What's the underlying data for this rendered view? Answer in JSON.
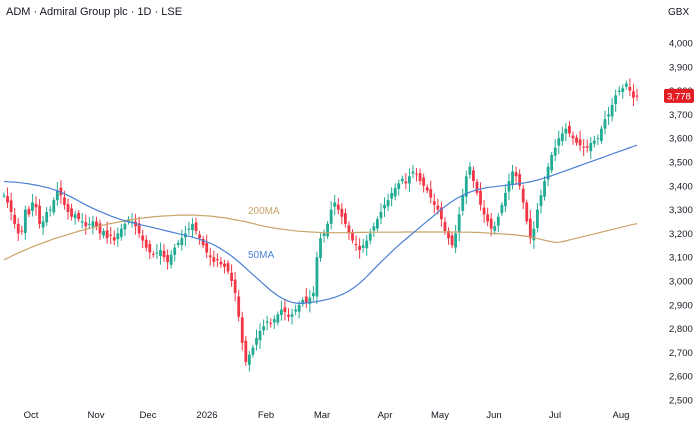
{
  "header": {
    "title": "ADM · Admiral Group plc · 1D · LSE",
    "currency": "GBX"
  },
  "colors": {
    "up": "#22ab94",
    "down": "#f23645",
    "ma50": "#4a7fd4",
    "ma200": "#c9a46a",
    "price_tag": "#e31c23"
  },
  "chart_data": {
    "type": "candlestick",
    "x_tick_labels": [
      "Oct",
      "Nov",
      "Dec",
      "2026",
      "Feb",
      "Mar",
      "Apr",
      "May",
      "Jun",
      "Jul",
      "Aug"
    ],
    "y_tick_labels": [
      "4,000",
      "3,900",
      "3,800",
      "3,700",
      "3,600",
      "3,500",
      "3,400",
      "3,300",
      "3,200",
      "3,100",
      "3,000",
      "2,900",
      "2,800",
      "2,700",
      "2,600",
      "2,500"
    ],
    "ylim": [
      2500,
      4050
    ],
    "last_price": "3,778",
    "last_price_value": 3778,
    "grid": false,
    "close_series": [
      3360,
      3330,
      3290,
      3240,
      3200,
      3210,
      3300,
      3280,
      3330,
      3310,
      3240,
      3250,
      3290,
      3300,
      3340,
      3380,
      3360,
      3320,
      3290,
      3270,
      3280,
      3260,
      3250,
      3230,
      3240,
      3250,
      3230,
      3200,
      3210,
      3180,
      3190,
      3170,
      3200,
      3220,
      3240,
      3260,
      3250,
      3230,
      3200,
      3170,
      3140,
      3120,
      3110,
      3120,
      3130,
      3100,
      3080,
      3110,
      3140,
      3160,
      3180,
      3200,
      3220,
      3240,
      3210,
      3180,
      3150,
      3120,
      3100,
      3080,
      3090,
      3070,
      3060,
      3040,
      3000,
      2950,
      2850,
      2740,
      2660,
      2690,
      2720,
      2760,
      2790,
      2810,
      2830,
      2820,
      2840,
      2860,
      2880,
      2870,
      2850,
      2860,
      2880,
      2900,
      2920,
      2910,
      2930,
      2950,
      3100,
      3180,
      3200,
      3240,
      3300,
      3330,
      3300,
      3270,
      3240,
      3200,
      3170,
      3150,
      3130,
      3150,
      3170,
      3200,
      3230,
      3260,
      3290,
      3320,
      3340,
      3370,
      3390,
      3410,
      3430,
      3410,
      3440,
      3460,
      3450,
      3420,
      3400,
      3380,
      3350,
      3320,
      3300,
      3260,
      3210,
      3180,
      3150,
      3200,
      3280,
      3360,
      3440,
      3480,
      3420,
      3370,
      3320,
      3280,
      3250,
      3220,
      3230,
      3270,
      3320,
      3370,
      3420,
      3460,
      3440,
      3400,
      3330,
      3250,
      3180,
      3220,
      3300,
      3360,
      3420,
      3480,
      3530,
      3560,
      3600,
      3620,
      3640,
      3620,
      3600,
      3580,
      3570,
      3560,
      3560,
      3580,
      3590,
      3600,
      3640,
      3680,
      3700,
      3740,
      3780,
      3800,
      3810,
      3830,
      3800,
      3770,
      3778
    ],
    "annotations": [
      {
        "name": "200MA",
        "series": [
          3089,
          3097,
          3105,
          3113,
          3120,
          3127,
          3134,
          3141,
          3148,
          3154,
          3160,
          3166,
          3172,
          3178,
          3183,
          3188,
          3193,
          3198,
          3203,
          3208,
          3212,
          3217,
          3221,
          3225,
          3229,
          3233,
          3236,
          3240,
          3243,
          3246,
          3249,
          3252,
          3255,
          3258,
          3260,
          3263,
          3265,
          3267,
          3269,
          3271,
          3272,
          3273,
          3274,
          3275,
          3276,
          3277,
          3277,
          3277,
          3277,
          3277,
          3276,
          3275,
          3274,
          3273,
          3271,
          3269,
          3267,
          3265,
          3262,
          3259,
          3256,
          3253,
          3250,
          3246,
          3242,
          3238,
          3234,
          3230,
          3227,
          3224,
          3221,
          3219,
          3217,
          3215,
          3213,
          3211,
          3209,
          3208,
          3207,
          3206,
          3205,
          3204,
          3203,
          3203,
          3203,
          3203,
          3203,
          3203,
          3203,
          3203,
          3203,
          3204,
          3204,
          3204,
          3205,
          3205,
          3205,
          3205,
          3205,
          3205,
          3205,
          3205,
          3205,
          3206,
          3206,
          3206,
          3206,
          3206,
          3206,
          3206,
          3206,
          3206,
          3206,
          3206,
          3206,
          3206,
          3206,
          3206,
          3205,
          3205,
          3205,
          3204,
          3204,
          3203,
          3202,
          3201,
          3200,
          3199,
          3198,
          3197,
          3196,
          3195,
          3193,
          3191,
          3189,
          3187,
          3184,
          3180,
          3176,
          3172,
          3168,
          3165,
          3162,
          3163,
          3166,
          3170,
          3174,
          3178,
          3182,
          3186,
          3190,
          3194,
          3198,
          3202,
          3206,
          3210,
          3214,
          3218,
          3222,
          3226,
          3230,
          3234,
          3238,
          3241
        ]
      },
      {
        "name": "50MA",
        "series": [
          3418,
          3417,
          3416,
          3415,
          3413,
          3411,
          3409,
          3406,
          3403,
          3400,
          3396,
          3392,
          3387,
          3381,
          3375,
          3368,
          3360,
          3352,
          3343,
          3334,
          3325,
          3316,
          3308,
          3300,
          3293,
          3286,
          3279,
          3272,
          3266,
          3260,
          3255,
          3250,
          3246,
          3242,
          3238,
          3234,
          3230,
          3226,
          3222,
          3218,
          3214,
          3210,
          3206,
          3202,
          3198,
          3194,
          3190,
          3186,
          3181,
          3176,
          3170,
          3164,
          3157,
          3149,
          3140,
          3130,
          3119,
          3107,
          3094,
          3080,
          3065,
          3050,
          3035,
          3020,
          3005,
          2990,
          2975,
          2960,
          2948,
          2936,
          2926,
          2918,
          2912,
          2908,
          2906,
          2906,
          2908,
          2910,
          2912,
          2915,
          2918,
          2922,
          2926,
          2931,
          2937,
          2944,
          2952,
          2962,
          2973,
          2986,
          3001,
          3017,
          3034,
          3051,
          3068,
          3085,
          3101,
          3117,
          3133,
          3148,
          3163,
          3177,
          3191,
          3205,
          3219,
          3233,
          3247,
          3261,
          3275,
          3289,
          3303,
          3316,
          3328,
          3339,
          3349,
          3358,
          3366,
          3373,
          3379,
          3384,
          3388,
          3391,
          3394,
          3396,
          3398,
          3400,
          3402,
          3404,
          3406,
          3408,
          3410,
          3413,
          3416,
          3420,
          3424,
          3429,
          3434,
          3439,
          3445,
          3451,
          3457,
          3463,
          3469,
          3475,
          3481,
          3487,
          3493,
          3499,
          3505,
          3511,
          3517,
          3523,
          3529,
          3535,
          3541,
          3547,
          3553,
          3559,
          3565,
          3571
        ]
      }
    ],
    "series": [
      {
        "name": "200MA"
      },
      {
        "name": "50MA"
      }
    ]
  }
}
